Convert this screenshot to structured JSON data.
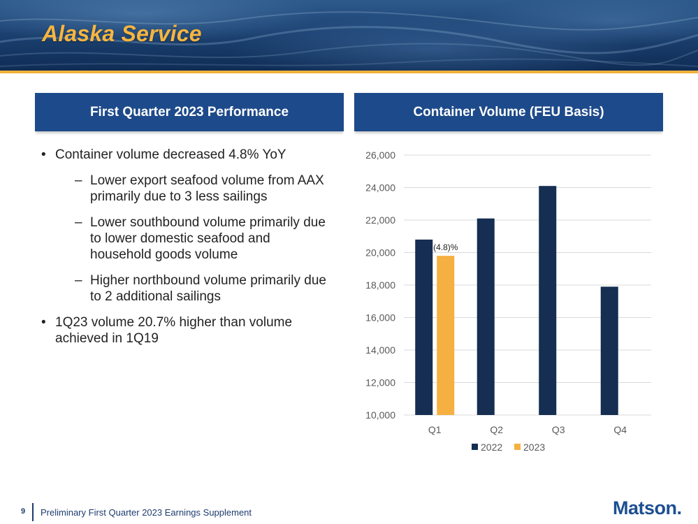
{
  "header": {
    "title": "Alaska Service"
  },
  "left_panel": {
    "title": "First Quarter 2023 Performance",
    "bullets": [
      {
        "text": "Container volume decreased 4.8% YoY",
        "level": 1
      },
      {
        "text": "Lower export seafood volume from AAX primarily due to 3 less sailings",
        "level": 2
      },
      {
        "text": "Lower southbound volume primarily due to lower domestic seafood and household goods volume",
        "level": 2
      },
      {
        "text": "Higher northbound volume primarily due to 2 additional sailings",
        "level": 2
      },
      {
        "text": "1Q23 volume 20.7% higher than volume achieved in 1Q19",
        "level": 1
      }
    ]
  },
  "right_panel": {
    "title": "Container Volume (FEU Basis)"
  },
  "chart_data": {
    "type": "bar",
    "title": "",
    "categories": [
      "Q1",
      "Q2",
      "Q3",
      "Q4"
    ],
    "series": [
      {
        "name": "2022",
        "values": [
          20800,
          22100,
          24100,
          17900
        ],
        "color": "#152e52"
      },
      {
        "name": "2023",
        "values": [
          19800,
          null,
          null,
          null
        ],
        "color": "#f5b041"
      }
    ],
    "ylim": [
      10000,
      26000
    ],
    "yticks": [
      10000,
      12000,
      14000,
      16000,
      18000,
      20000,
      22000,
      24000,
      26000
    ],
    "ytick_labels": [
      "10,000",
      "12,000",
      "14,000",
      "16,000",
      "18,000",
      "20,000",
      "22,000",
      "24,000",
      "26,000"
    ],
    "annotations": [
      {
        "category": "Q1",
        "series": "2023",
        "text": "(4.8)%"
      }
    ],
    "grid": true,
    "legend": "bottom"
  },
  "footer": {
    "page_number": "9",
    "text": "Preliminary First Quarter 2023 Earnings Supplement",
    "logo": "Matson."
  }
}
